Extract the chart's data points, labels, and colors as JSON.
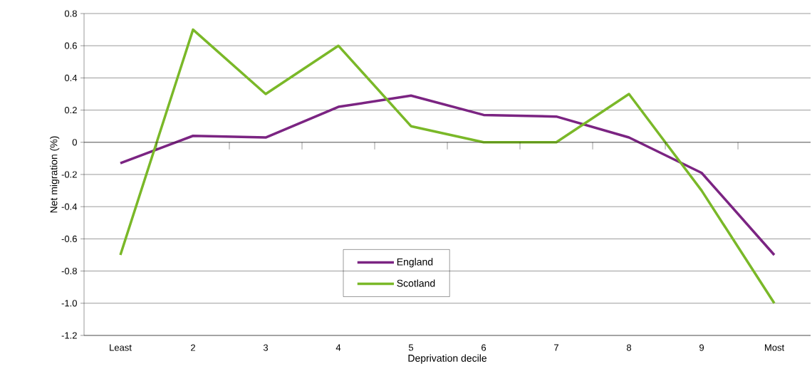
{
  "chart_data": {
    "type": "line",
    "xlabel": "Deprivation decile",
    "ylabel": "Net migration (%)",
    "categories": [
      "Least",
      "2",
      "3",
      "4",
      "5",
      "6",
      "7",
      "8",
      "9",
      "Most"
    ],
    "series": [
      {
        "name": "England",
        "color": "#7b2482",
        "values": [
          -0.13,
          0.04,
          0.03,
          0.22,
          0.29,
          0.17,
          0.16,
          0.03,
          -0.19,
          -0.7
        ]
      },
      {
        "name": "Scotland",
        "color": "#7ab828",
        "values": [
          -0.7,
          0.7,
          0.3,
          0.6,
          0.1,
          0,
          0,
          0.3,
          -0.3,
          -1.0
        ]
      }
    ],
    "ylim": [
      -1.2,
      0.8
    ],
    "yticks": [
      0.8,
      0.6,
      0.4,
      0.2,
      0,
      -0.2,
      -0.4,
      -0.6,
      -0.8,
      {
        "value": -1.0,
        "label": "-1.0"
      },
      -1.2
    ],
    "grid": "y",
    "legend": "bottom",
    "marker": "none",
    "line_style": "solid"
  }
}
